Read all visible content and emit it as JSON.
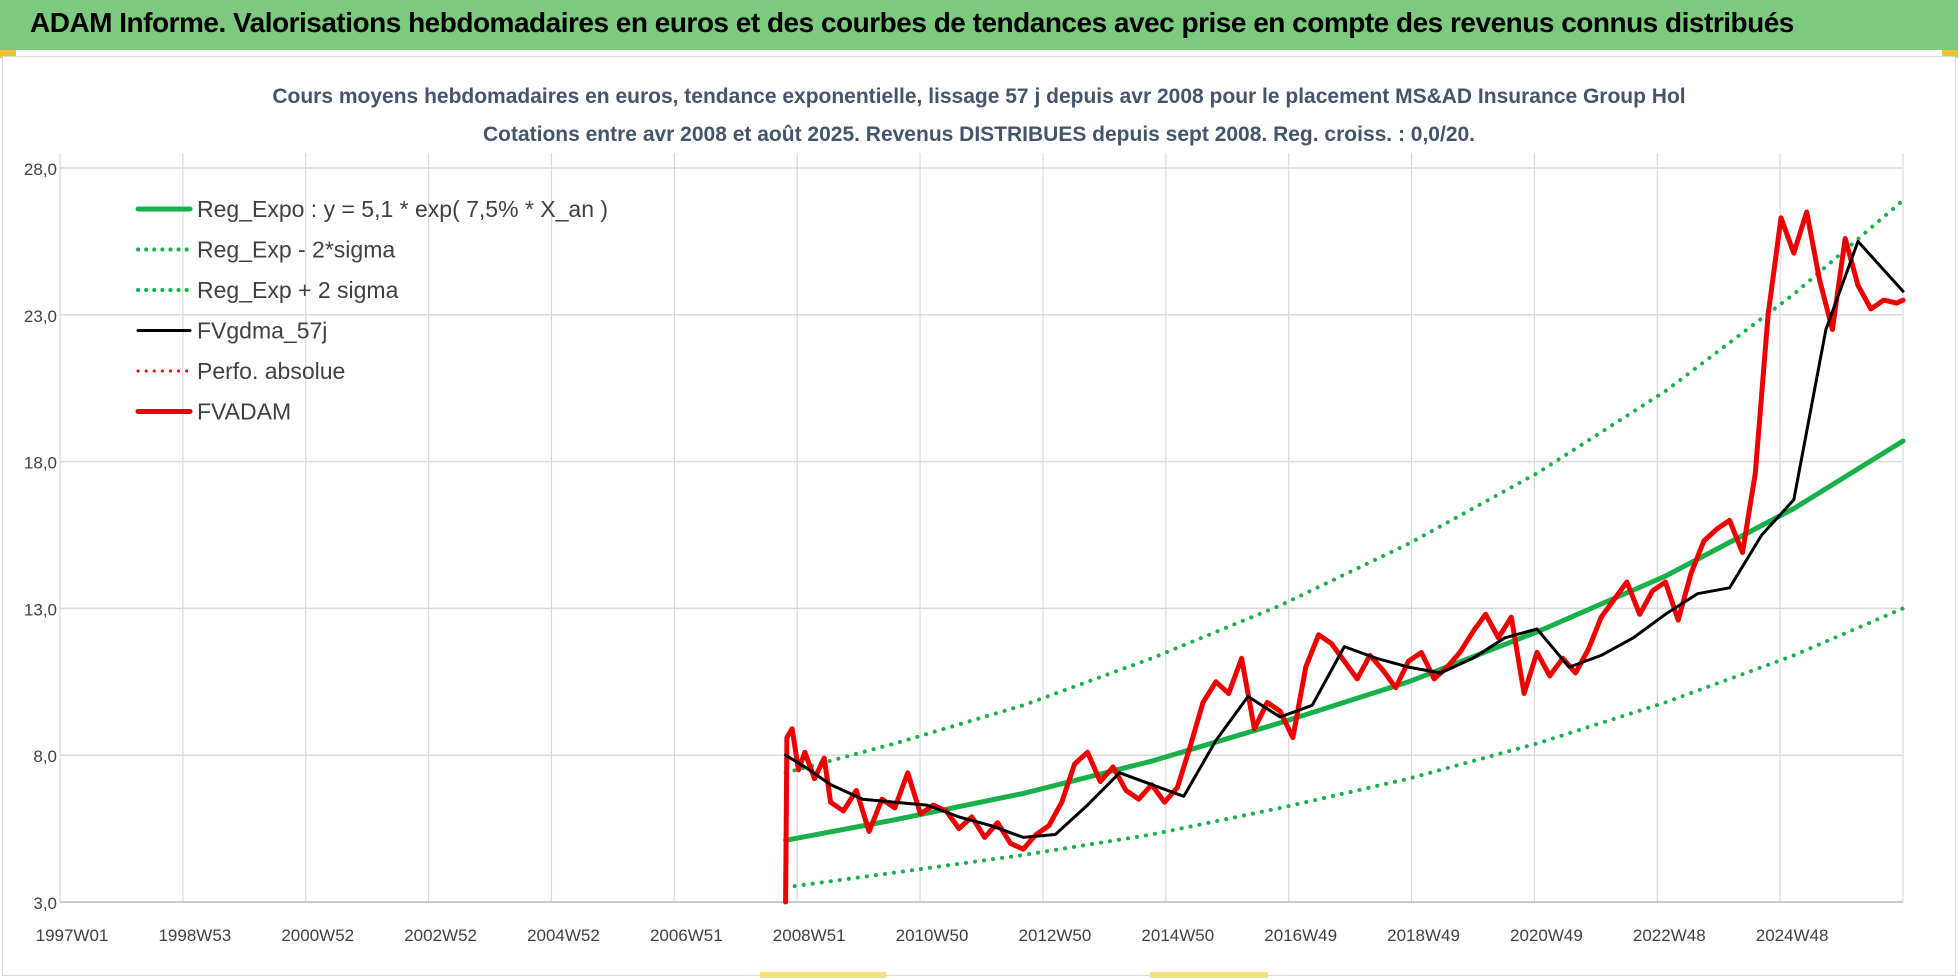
{
  "header": {
    "title": "ADAM Informe. Valorisations hebdomadaires en euros et des courbes de tendances avec prise en compte des revenus connus distribués"
  },
  "colors": {
    "header_bg": "#7dc97e",
    "reg_green": "#18b04a",
    "perf_red": "#ee0000",
    "smooth_black": "#000000",
    "grid": "#d9d9d9",
    "axis_text": "#404040"
  },
  "chart_data": {
    "type": "line",
    "title": "Cours moyens hebdomadaires en euros, tendance exponentielle, lissage 57 j depuis avr 2008 pour le placement MS&AD  Insurance Group Hol",
    "subtitle": "Cotations entre avr 2008 et août 2025. Revenus DISTRIBUES depuis sept 2008. Reg. croiss. : 0,0/20.",
    "xlabel": "",
    "ylabel": "",
    "x_range": [
      1997.0,
      2025.7
    ],
    "ylim": [
      3.0,
      28.0
    ],
    "y_ticks": [
      "28,0",
      "23,0",
      "18,0",
      "13,0",
      "8,0",
      "3,0"
    ],
    "x_tick_labels": [
      "1997W01",
      "1998W53",
      "2000W52",
      "2002W52",
      "2004W52",
      "2006W51",
      "2008W51",
      "2010W50",
      "2012W50",
      "2014W50",
      "2016W49",
      "2018W49",
      "2020W49",
      "2022W48",
      "2024W48"
    ],
    "grid": true,
    "legend_position": "top-left",
    "legend": [
      {
        "label": "Reg_Expo : y = 5,1 * exp( 7,5% *  X_an )",
        "style": "solid",
        "color": "#18b04a",
        "width": 5
      },
      {
        "label": "Reg_Exp - 2*sigma",
        "style": "dotted",
        "color": "#18b04a",
        "width": 4
      },
      {
        "label": "Reg_Exp + 2 sigma",
        "style": "dotted",
        "color": "#18b04a",
        "width": 4
      },
      {
        "label": "FVgdma_57j",
        "style": "solid",
        "color": "#000000",
        "width": 3
      },
      {
        "label": "Perfo. absolue",
        "style": "dotted",
        "color": "#ee0000",
        "width": 3
      },
      {
        "label": "FVADAM",
        "style": "solid",
        "color": "#ee0000",
        "width": 5
      }
    ],
    "series": [
      {
        "name": "Reg_Expo : y = 5,1 * exp( 7,5% *  X_an )",
        "x": [
          2008.3,
          2010.0,
          2012.0,
          2014.0,
          2016.0,
          2018.0,
          2020.0,
          2022.0,
          2024.0,
          2025.7
        ],
        "values": [
          5.1,
          5.8,
          6.7,
          7.8,
          9.1,
          10.5,
          12.2,
          14.1,
          16.4,
          18.7
        ]
      },
      {
        "name": "Reg_Exp - 2*sigma",
        "x": [
          2008.3,
          2010.0,
          2012.0,
          2014.0,
          2016.0,
          2018.0,
          2020.0,
          2022.0,
          2024.0,
          2025.7
        ],
        "values": [
          3.5,
          4.0,
          4.6,
          5.3,
          6.2,
          7.2,
          8.4,
          9.8,
          11.4,
          13.0
        ]
      },
      {
        "name": "Reg_Exp + 2 sigma",
        "x": [
          2008.3,
          2010.0,
          2012.0,
          2014.0,
          2016.0,
          2018.0,
          2020.0,
          2022.0,
          2024.0,
          2025.7
        ],
        "values": [
          7.4,
          8.4,
          9.7,
          11.3,
          13.1,
          15.2,
          17.6,
          20.4,
          23.7,
          26.9
        ]
      },
      {
        "name": "FVgdma_57j",
        "x": [
          2008.3,
          2008.6,
          2009.0,
          2009.5,
          2010.0,
          2010.5,
          2011.0,
          2011.5,
          2012.0,
          2012.5,
          2013.0,
          2013.5,
          2014.0,
          2014.5,
          2015.0,
          2015.5,
          2016.0,
          2016.5,
          2017.0,
          2017.5,
          2018.0,
          2018.5,
          2019.0,
          2019.5,
          2020.0,
          2020.5,
          2021.0,
          2021.5,
          2022.0,
          2022.5,
          2023.0,
          2023.5,
          2024.0,
          2024.5,
          2025.0,
          2025.7
        ],
        "values": [
          8.0,
          7.6,
          7.0,
          6.5,
          6.4,
          6.3,
          5.9,
          5.6,
          5.2,
          5.3,
          6.3,
          7.4,
          7.0,
          6.6,
          8.5,
          10.0,
          9.3,
          9.7,
          11.7,
          11.3,
          11.0,
          10.8,
          11.3,
          12.0,
          12.3,
          11.0,
          11.4,
          12.0,
          12.8,
          13.5,
          13.7,
          15.5,
          16.7,
          22.5,
          25.5,
          23.8
        ]
      },
      {
        "name": "FVADAM",
        "x": [
          2008.3,
          2008.32,
          2008.4,
          2008.5,
          2008.6,
          2008.75,
          2008.9,
          2009.0,
          2009.2,
          2009.4,
          2009.6,
          2009.8,
          2010.0,
          2010.2,
          2010.4,
          2010.6,
          2010.8,
          2011.0,
          2011.2,
          2011.4,
          2011.6,
          2011.8,
          2012.0,
          2012.2,
          2012.4,
          2012.6,
          2012.8,
          2013.0,
          2013.2,
          2013.4,
          2013.6,
          2013.8,
          2014.0,
          2014.2,
          2014.4,
          2014.6,
          2014.8,
          2015.0,
          2015.2,
          2015.4,
          2015.6,
          2015.8,
          2016.0,
          2016.2,
          2016.4,
          2016.6,
          2016.8,
          2017.0,
          2017.2,
          2017.4,
          2017.6,
          2017.8,
          2018.0,
          2018.2,
          2018.4,
          2018.6,
          2018.8,
          2019.0,
          2019.2,
          2019.4,
          2019.6,
          2019.8,
          2020.0,
          2020.2,
          2020.4,
          2020.6,
          2020.8,
          2021.0,
          2021.2,
          2021.4,
          2021.6,
          2021.8,
          2022.0,
          2022.2,
          2022.4,
          2022.6,
          2022.8,
          2023.0,
          2023.2,
          2023.4,
          2023.6,
          2023.8,
          2024.0,
          2024.2,
          2024.4,
          2024.6,
          2024.8,
          2025.0,
          2025.2,
          2025.4,
          2025.6,
          2025.7
        ],
        "values": [
          3.0,
          8.6,
          8.9,
          7.5,
          8.1,
          7.2,
          7.9,
          6.4,
          6.1,
          6.8,
          5.4,
          6.5,
          6.2,
          7.4,
          6.0,
          6.3,
          6.1,
          5.5,
          5.9,
          5.2,
          5.7,
          5.0,
          4.8,
          5.3,
          5.6,
          6.4,
          7.7,
          8.1,
          7.1,
          7.6,
          6.8,
          6.5,
          7.0,
          6.4,
          6.9,
          8.3,
          9.8,
          10.5,
          10.1,
          11.3,
          8.9,
          9.8,
          9.5,
          8.6,
          11.0,
          12.1,
          11.8,
          11.2,
          10.6,
          11.4,
          10.9,
          10.3,
          11.2,
          11.5,
          10.6,
          11.0,
          11.5,
          12.2,
          12.8,
          12.0,
          12.7,
          10.1,
          11.5,
          10.7,
          11.3,
          10.8,
          11.6,
          12.7,
          13.3,
          13.9,
          12.8,
          13.6,
          13.9,
          12.6,
          14.2,
          15.3,
          15.7,
          16.0,
          14.9,
          17.6,
          23.0,
          26.3,
          25.1,
          26.5,
          24.2,
          22.5,
          25.6,
          24.0,
          23.2,
          23.5,
          23.4,
          23.5
        ]
      }
    ]
  }
}
